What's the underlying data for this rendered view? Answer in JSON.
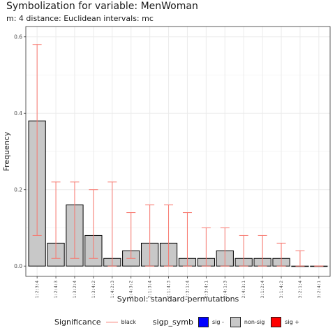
{
  "title": "Symbolization for variable: MenWoman",
  "subtitle": "m: 4  distance:  Euclidean  intervals:  mc",
  "chart_data": {
    "type": "bar",
    "title": "Symbolization for variable: MenWoman",
    "subtitle": "m: 4  distance:  Euclidean  intervals:  mc",
    "xlabel": "Symbol: standard-permutations",
    "ylabel": "Frequency",
    "ylim": [
      -0.027,
      0.627
    ],
    "y_ticks": [
      "0.0",
      "0.2",
      "0.4",
      "0.6"
    ],
    "y_tick_values": [
      0,
      0.2,
      0.4,
      0.6
    ],
    "grid": true,
    "categories": [
      "1:2:3:4",
      "1:2:4:3",
      "1:3:2:4",
      "1:3:4:2",
      "1:4:2:3",
      "1:4:3:2",
      "2:1:3:4",
      "2:1:4:3",
      "2:3:1:4",
      "2:3:4:1",
      "2:4:1:3",
      "2:4:3:1",
      "3:1:2:4",
      "3:1:4:2",
      "3:2:1:4",
      "3:2:4:1"
    ],
    "values": [
      0.38,
      0.06,
      0.16,
      0.08,
      0.02,
      0.04,
      0.06,
      0.06,
      0.02,
      0.02,
      0.04,
      0.02,
      0.02,
      0.02,
      0.0,
      0.0
    ],
    "error_low": [
      0.08,
      0.02,
      0.02,
      0.02,
      0.0,
      0.02,
      0.0,
      0.0,
      0.0,
      0.0,
      0.0,
      0.0,
      0.0,
      0.0,
      0.0,
      0.0
    ],
    "error_high": [
      0.58,
      0.22,
      0.22,
      0.2,
      0.22,
      0.14,
      0.16,
      0.16,
      0.14,
      0.1,
      0.1,
      0.08,
      0.08,
      0.06,
      0.04,
      0.0
    ],
    "significance": [
      "non-sig",
      "non-sig",
      "non-sig",
      "non-sig",
      "non-sig",
      "non-sig",
      "non-sig",
      "non-sig",
      "non-sig",
      "non-sig",
      "non-sig",
      "non-sig",
      "non-sig",
      "non-sig",
      "non-sig",
      "non-sig"
    ],
    "legend_placement": "bottom"
  },
  "colors": {
    "bar_fill": "#c8c8c8",
    "bar_border": "#000000",
    "error_bar": "#f8766d",
    "grid": "#ebebeb",
    "panel_border": "#333333",
    "sig_minus": "#0000ff",
    "non_sig": "#c8c8c8",
    "sig_plus": "#ff0000"
  },
  "legend": {
    "significance_title": "Significance",
    "significance_item": "black",
    "symb_title": "sigp_symb",
    "items": [
      {
        "label": "sig -",
        "color": "#0000ff"
      },
      {
        "label": "non-sig",
        "color": "#c8c8c8"
      },
      {
        "label": "sig +",
        "color": "#ff0000"
      }
    ]
  }
}
